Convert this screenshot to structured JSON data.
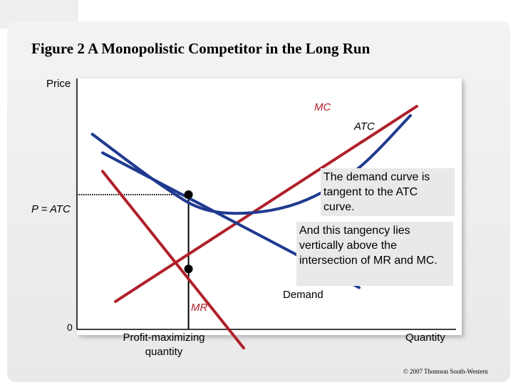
{
  "title": "Figure 2 A Monopolistic Competitor in the Long Run",
  "copyright": "© 2007 Thomson South-Western",
  "chart_data": {
    "type": "line",
    "xlabel": "Quantity",
    "ylabel": "Price",
    "origin_label": "0",
    "price_label": "P = ATC",
    "quantity_label": "Profit-maximizing quantity",
    "series": [
      {
        "name": "MC",
        "color": "#b0202a",
        "x": [
          3.0,
          26.5
        ],
        "y": [
          3.0,
          24.0
        ]
      },
      {
        "name": "ATC",
        "color": "#1f3a8f",
        "x": [
          1.2,
          6.6,
          10.0,
          14.0,
          18.0,
          22.0,
          26.0
        ],
        "y": [
          21.0,
          15.5,
          12.9,
          12.6,
          14.0,
          17.4,
          23.0
        ]
      },
      {
        "name": "Demand",
        "color": "#1f3a8f",
        "x": [
          2.0,
          22.0
        ],
        "y": [
          19.0,
          4.5
        ]
      },
      {
        "name": "MR",
        "color": "#b0202a",
        "x": [
          2.0,
          13.0
        ],
        "y": [
          17.0,
          -2.0
        ]
      }
    ],
    "points": [
      {
        "x": 8.7,
        "y": 14.5
      },
      {
        "x": 8.7,
        "y": 6.5
      }
    ],
    "xlim": [
      0,
      30
    ],
    "ylim": [
      -2,
      27
    ]
  },
  "notes": [
    "The demand curve is tangent to the ATC curve.",
    "And this tangency lies vertically above the intersection of MR and MC."
  ]
}
